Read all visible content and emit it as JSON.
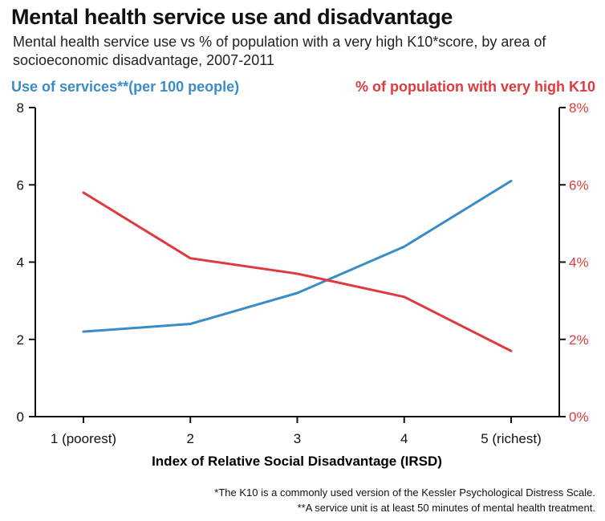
{
  "chart_data": {
    "type": "line",
    "title": "Mental health service use and disadvantage",
    "subtitle": "Mental health service use vs % of population with a very high K10*score, by area of socioeconomic disadvantage, 2007-2011",
    "xlabel": "Index of Relative Social Disadvantage (IRSD)",
    "ylabel_left": "Use of services**(per 100 people)",
    "ylabel_right": "% of population with very high K10",
    "categories": [
      "1 (poorest)",
      "2",
      "3",
      "4",
      "5 (richest)"
    ],
    "y_left_ticks": [
      "0",
      "2",
      "4",
      "6",
      "8"
    ],
    "y_right_ticks": [
      "0%",
      "2%",
      "4%",
      "6%",
      "8%"
    ],
    "ylim_left": [
      0,
      8
    ],
    "ylim_right": [
      0,
      8
    ],
    "series": [
      {
        "name": "Use of services (per 100 people)",
        "axis": "left",
        "color": "#3a8cc6",
        "values": [
          2.2,
          2.4,
          3.2,
          4.4,
          6.1
        ]
      },
      {
        "name": "% of population with very high K10",
        "axis": "right",
        "color": "#e03a3e",
        "values": [
          5.8,
          4.1,
          3.7,
          3.1,
          1.7
        ]
      }
    ],
    "footnotes": [
      "*The K10 is a commonly used version of the Kessler Psychological Distress Scale.",
      "**A service unit is at least 50 minutes of mental health treatment."
    ]
  },
  "colors": {
    "left_axis_color": "#3a8cc6",
    "right_axis_color": "#e03a3e",
    "axis_color": "#111111"
  }
}
